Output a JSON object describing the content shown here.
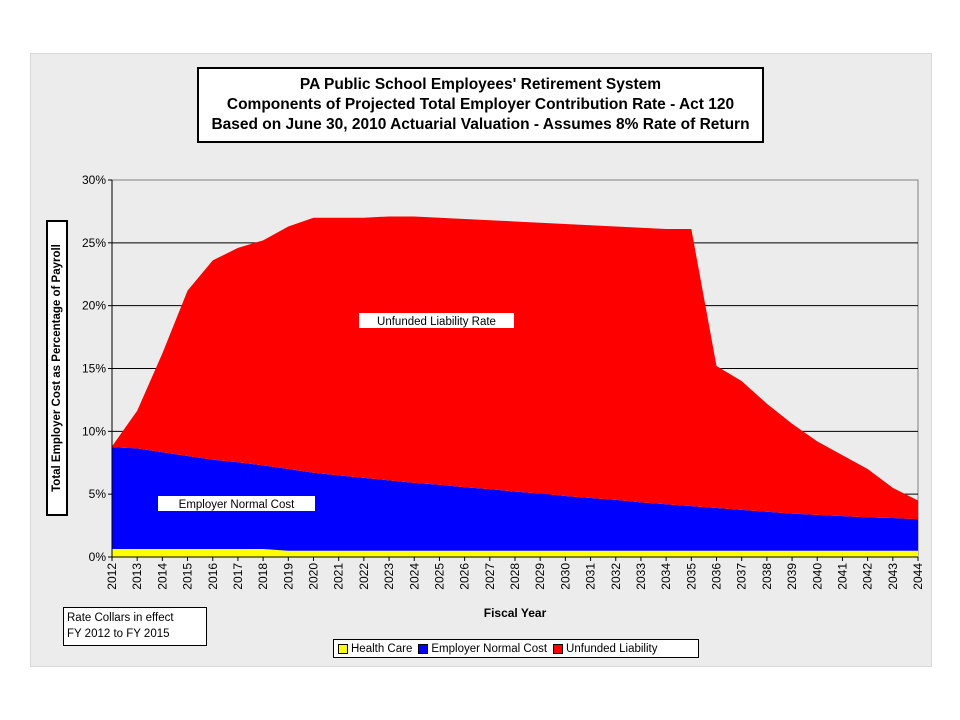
{
  "title_lines": [
    "PA Public School Employees' Retirement System",
    "Components of Projected Total Employer Contribution Rate - Act 120",
    "Based on June 30, 2010 Actuarial Valuation - Assumes 8% Rate of Return"
  ],
  "note_lines": [
    "Rate Collars in effect",
    "FY 2012 to FY 2015"
  ],
  "colors": {
    "health": "#ffff00",
    "normal": "#0000ff",
    "unfunded": "#ff0000",
    "background": "#ececec"
  },
  "chart_data": {
    "type": "area",
    "stacked": true,
    "title": "PA Public School Employees' Retirement System Components of Projected Total Employer Contribution Rate - Act 120 Based on June 30, 2010 Actuarial Valuation - Assumes 8% Rate of Return",
    "xlabel": "Fiscal Year",
    "ylabel": "Total Employer Cost as Percentage of Payroll",
    "ylim": [
      0,
      30
    ],
    "yticks": [
      "0%",
      "5%",
      "10%",
      "15%",
      "20%",
      "25%",
      "30%"
    ],
    "grid": true,
    "legend_position": "bottom",
    "x": [
      "2012",
      "2013",
      "2014",
      "2015",
      "2016",
      "2017",
      "2018",
      "2019",
      "2020",
      "2021",
      "2022",
      "2023",
      "2024",
      "2025",
      "2026",
      "2027",
      "2028",
      "2029",
      "2030",
      "2031",
      "2032",
      "2033",
      "2034",
      "2035",
      "2036",
      "2037",
      "2038",
      "2039",
      "2040",
      "2041",
      "2042",
      "2043",
      "2044"
    ],
    "series": [
      {
        "name": "Health Care",
        "values": [
          0.64,
          0.64,
          0.64,
          0.64,
          0.64,
          0.64,
          0.64,
          0.5,
          0.5,
          0.5,
          0.5,
          0.5,
          0.5,
          0.5,
          0.5,
          0.5,
          0.5,
          0.5,
          0.5,
          0.5,
          0.5,
          0.5,
          0.5,
          0.5,
          0.5,
          0.5,
          0.5,
          0.5,
          0.5,
          0.5,
          0.5,
          0.5,
          0.5
        ]
      },
      {
        "name": "Employer Normal Cost",
        "values": [
          8.1,
          8.0,
          7.7,
          7.4,
          7.1,
          6.9,
          6.65,
          6.5,
          6.2,
          6.0,
          5.8,
          5.6,
          5.4,
          5.25,
          5.05,
          4.9,
          4.7,
          4.55,
          4.35,
          4.2,
          4.05,
          3.85,
          3.7,
          3.55,
          3.4,
          3.25,
          3.1,
          2.95,
          2.85,
          2.75,
          2.65,
          2.6,
          2.5
        ]
      },
      {
        "name": "Unfunded Liability",
        "values": [
          0.06,
          3.0,
          7.86,
          13.16,
          15.86,
          17.06,
          17.91,
          19.3,
          20.3,
          20.5,
          20.7,
          21.0,
          21.2,
          21.25,
          21.35,
          21.4,
          21.5,
          21.55,
          21.65,
          21.7,
          21.75,
          21.85,
          21.9,
          22.05,
          11.3,
          10.25,
          8.6,
          7.15,
          5.85,
          4.85,
          3.85,
          2.4,
          1.5
        ]
      }
    ],
    "annotations": [
      "Unfunded Liability Rate",
      "Employer Normal Cost"
    ]
  }
}
